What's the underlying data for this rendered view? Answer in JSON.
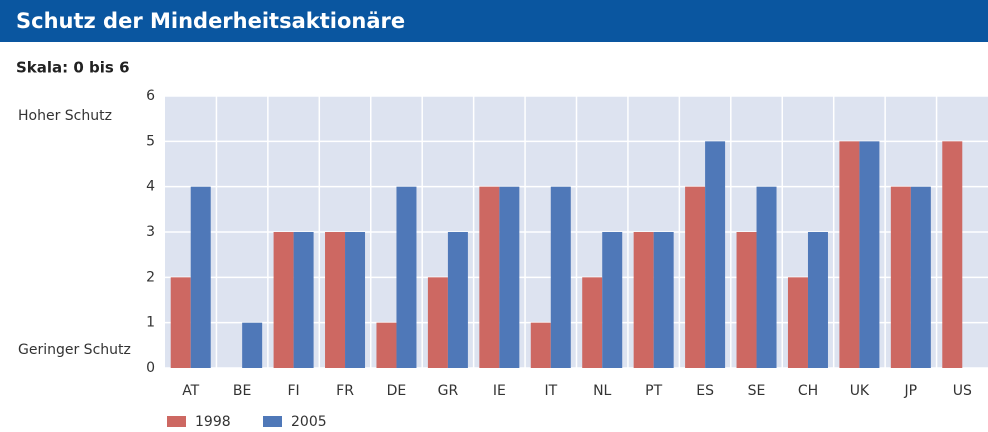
{
  "chart_data": {
    "type": "bar",
    "title": "Schutz der Minderheitsaktionäre",
    "subtitle": "Skala: 0 bis 6",
    "annotations": [
      "Hoher Schutz",
      "Geringer Schutz"
    ],
    "categories": [
      "AT",
      "BE",
      "FI",
      "FR",
      "DE",
      "GR",
      "IE",
      "IT",
      "NL",
      "PT",
      "ES",
      "SE",
      "CH",
      "UK",
      "JP",
      "US"
    ],
    "series": [
      {
        "name": "1998",
        "color": "#cd6862",
        "values": [
          2,
          null,
          3,
          3,
          1,
          2,
          4,
          1,
          2,
          3,
          4,
          3,
          2,
          5,
          4,
          5
        ]
      },
      {
        "name": "2005",
        "color": "#4f78b8",
        "values": [
          4,
          1,
          3,
          3,
          4,
          3,
          4,
          4,
          3,
          3,
          5,
          4,
          3,
          5,
          4,
          null
        ]
      }
    ],
    "ylim": [
      0,
      6
    ],
    "yticks": [
      0,
      1,
      2,
      3,
      4,
      5,
      6
    ],
    "grid": true,
    "legend": "bottom-left"
  }
}
